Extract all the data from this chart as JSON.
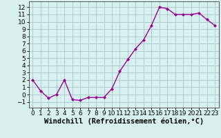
{
  "x": [
    0,
    1,
    2,
    3,
    4,
    5,
    6,
    7,
    8,
    9,
    10,
    11,
    12,
    13,
    14,
    15,
    16,
    17,
    18,
    19,
    20,
    21,
    22,
    23
  ],
  "y": [
    2,
    0.5,
    -0.5,
    0,
    2,
    -0.7,
    -0.8,
    -0.4,
    -0.4,
    -0.4,
    0.8,
    3.2,
    4.8,
    6.3,
    7.5,
    9.5,
    12,
    11.8,
    11,
    11,
    11,
    11.2,
    10.3,
    9.5
  ],
  "line_color": "#990099",
  "marker": "D",
  "marker_size": 2.0,
  "bg_color": "#d8f0f0",
  "grid_color": "#aacccc",
  "xlabel": "Windchill (Refroidissement éolien,°C)",
  "xlim": [
    -0.5,
    23.5
  ],
  "ylim": [
    -1.8,
    12.8
  ],
  "yticks": [
    -1,
    0,
    1,
    2,
    3,
    4,
    5,
    6,
    7,
    8,
    9,
    10,
    11,
    12
  ],
  "xticks": [
    0,
    1,
    2,
    3,
    4,
    5,
    6,
    7,
    8,
    9,
    10,
    11,
    12,
    13,
    14,
    15,
    16,
    17,
    18,
    19,
    20,
    21,
    22,
    23
  ],
  "tick_fontsize": 6.5,
  "xlabel_fontsize": 7.5,
  "linewidth": 1.0
}
